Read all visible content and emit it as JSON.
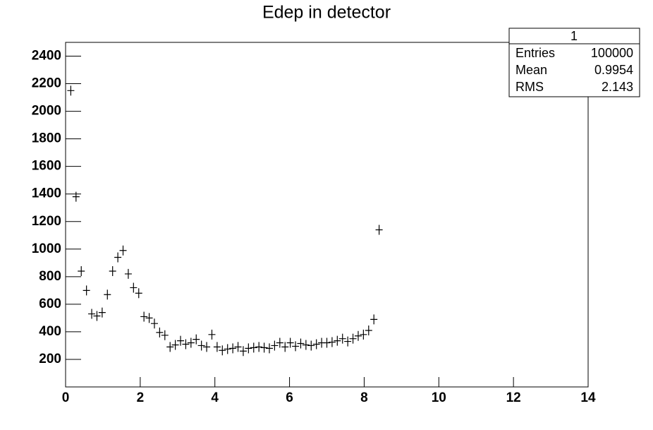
{
  "chart_data": {
    "type": "scatter",
    "title": "Edep in detector",
    "x": [
      0.14,
      0.28,
      0.42,
      0.56,
      0.7,
      0.84,
      0.98,
      1.12,
      1.26,
      1.4,
      1.54,
      1.68,
      1.82,
      1.96,
      2.1,
      2.24,
      2.38,
      2.52,
      2.66,
      2.8,
      2.94,
      3.08,
      3.22,
      3.36,
      3.5,
      3.64,
      3.78,
      3.92,
      4.06,
      4.2,
      4.34,
      4.48,
      4.62,
      4.76,
      4.9,
      5.04,
      5.18,
      5.32,
      5.46,
      5.6,
      5.74,
      5.88,
      6.02,
      6.16,
      6.3,
      6.44,
      6.58,
      6.72,
      6.86,
      7,
      7.14,
      7.28,
      7.42,
      7.56,
      7.7,
      7.84,
      7.98,
      8.12,
      8.26,
      8.4
    ],
    "values": [
      2150,
      1380,
      840,
      700,
      530,
      515,
      540,
      670,
      840,
      940,
      990,
      820,
      720,
      680,
      510,
      500,
      460,
      395,
      375,
      290,
      305,
      335,
      310,
      320,
      345,
      300,
      290,
      380,
      290,
      265,
      275,
      280,
      290,
      260,
      280,
      285,
      290,
      285,
      280,
      300,
      320,
      290,
      320,
      295,
      315,
      305,
      300,
      310,
      320,
      320,
      325,
      335,
      350,
      330,
      350,
      370,
      380,
      410,
      490,
      1140
    ],
    "color": "#000000",
    "xlim": [
      0,
      14
    ],
    "xticks": [
      0,
      2,
      4,
      6,
      8,
      10,
      12,
      14
    ],
    "ylim": [
      0,
      2500
    ],
    "yticks": [
      200,
      400,
      600,
      800,
      1000,
      1200,
      1400,
      1600,
      1800,
      2000,
      2200,
      2400
    ],
    "stats": {
      "title": "1",
      "rows": [
        [
          "Entries",
          "100000"
        ],
        [
          "Mean",
          "0.9954"
        ],
        [
          "RMS",
          "2.143"
        ]
      ]
    }
  }
}
